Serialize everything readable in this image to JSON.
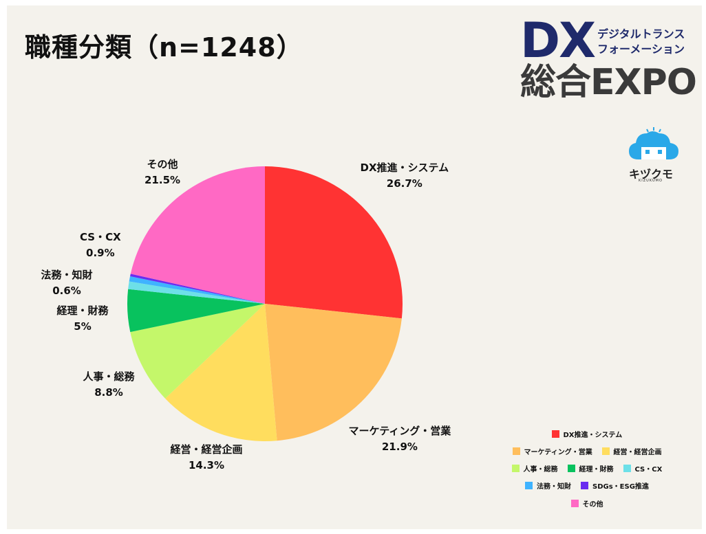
{
  "title": "職種分類（n=1248）",
  "logo": {
    "dx": "DX",
    "sub1": "デジタルトランス",
    "sub2": "フォーメーション",
    "expo": "総合EXPO",
    "brand_color": "#1f2a6b"
  },
  "kizukumo": {
    "name": "キヅクモ",
    "sub": "KIZUKUMO",
    "icon": "cloud-mascot-icon",
    "color": "#2aa8e8"
  },
  "chart_data": {
    "type": "pie",
    "title": "職種分類（n=1248）",
    "legend_position": "bottom-right",
    "slices": [
      {
        "name": "DX推進・システム",
        "value": 26.7,
        "label": "26.7%",
        "color": "#ff3333"
      },
      {
        "name": "マーケティング・営業",
        "value": 21.9,
        "label": "21.9%",
        "color": "#ffbe5c"
      },
      {
        "name": "経営・経営企画",
        "value": 14.3,
        "label": "14.3%",
        "color": "#ffdd5e"
      },
      {
        "name": "人事・総務",
        "value": 8.8,
        "label": "8.8%",
        "color": "#c4f76a"
      },
      {
        "name": "経理・財務",
        "value": 5,
        "label": "5%",
        "color": "#08c25e"
      },
      {
        "name": "CS・CX",
        "value": 0.9,
        "label": "0.9%",
        "color": "#6de0e8"
      },
      {
        "name": "法務・知財",
        "value": 0.6,
        "label": "0.6%",
        "color": "#3fb3ff"
      },
      {
        "name": "SDGs・ESG推進",
        "value": 0.3,
        "label": "",
        "color": "#6a2cf0"
      },
      {
        "name": "その他",
        "value": 21.5,
        "label": "21.5%",
        "color": "#ff69c4"
      }
    ]
  }
}
